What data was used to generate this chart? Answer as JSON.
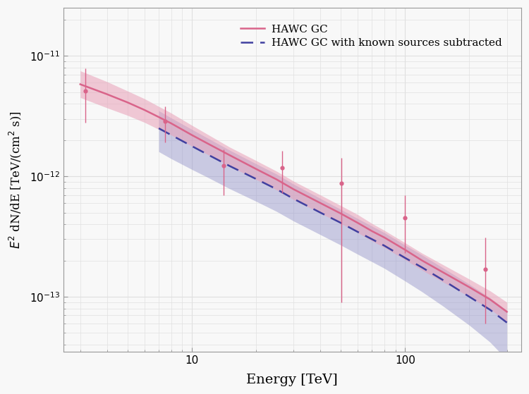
{
  "title": "",
  "xlabel": "Energy [TeV]",
  "ylabel": "$E^2$ dN/dE [TeV/(cm$^2$ s)]",
  "xlim": [
    2.5,
    350.0
  ],
  "ylim": [
    3.5e-14,
    2.5e-11
  ],
  "background_color": "#f8f8f8",
  "grid_color": "#e0e0e0",
  "hawc_gc_color": "#d9648a",
  "hawc_gc_band_color": "#e8a0b8",
  "hawc_gc_band_alpha": 0.55,
  "hawc_sub_color": "#4040a0",
  "hawc_sub_band_color": "#9090c8",
  "hawc_sub_band_alpha": 0.45,
  "legend_label_gc": "HAWC GC",
  "legend_label_sub": "HAWC GC with known sources subtracted",
  "energy_curve": [
    3.0,
    4.0,
    5.0,
    6.0,
    7.0,
    8.0,
    10.0,
    12.0,
    15.0,
    20.0,
    25.0,
    30.0,
    40.0,
    50.0,
    60.0,
    70.0,
    80.0,
    100.0,
    120.0,
    150.0,
    200.0,
    250.0,
    300.0
  ],
  "hawc_gc_flux": [
    5.8e-12,
    4.8e-12,
    4.1e-12,
    3.55e-12,
    3.1e-12,
    2.75e-12,
    2.2e-12,
    1.85e-12,
    1.5e-12,
    1.15e-12,
    9.4e-13,
    7.8e-13,
    6e-13,
    4.9e-13,
    4.1e-13,
    3.5e-13,
    3.1e-13,
    2.45e-13,
    2e-13,
    1.6e-13,
    1.2e-13,
    9.5e-14,
    7.5e-14
  ],
  "hawc_gc_upper": [
    7.5e-12,
    6.1e-12,
    5.1e-12,
    4.4e-12,
    3.8e-12,
    3.35e-12,
    2.65e-12,
    2.2e-12,
    1.75e-12,
    1.35e-12,
    1.1e-12,
    9.1e-13,
    7e-13,
    5.7e-13,
    4.8e-13,
    4.05e-13,
    3.55e-13,
    2.8e-13,
    2.3e-13,
    1.85e-13,
    1.4e-13,
    1.12e-13,
    9e-14
  ],
  "hawc_gc_lower": [
    4.5e-12,
    3.7e-12,
    3.2e-12,
    2.8e-12,
    2.45e-12,
    2.2e-12,
    1.78e-12,
    1.5e-12,
    1.22e-12,
    9.4e-13,
    7.7e-13,
    6.4e-13,
    4.95e-13,
    4.05e-13,
    3.4e-13,
    2.9e-13,
    2.56e-13,
    2.03e-13,
    1.66e-13,
    1.33e-13,
    1e-13,
    7.9e-14,
    6.2e-14
  ],
  "hawc_sub_energy": [
    7.0,
    8.0,
    10.0,
    12.0,
    15.0,
    20.0,
    25.0,
    30.0,
    40.0,
    50.0,
    60.0,
    70.0,
    80.0,
    100.0,
    120.0,
    150.0,
    200.0,
    250.0,
    300.0
  ],
  "hawc_sub_flux": [
    2.5e-12,
    2.2e-12,
    1.78e-12,
    1.5e-12,
    1.22e-12,
    9.5e-13,
    7.8e-13,
    6.5e-13,
    5e-13,
    4.1e-13,
    3.45e-13,
    3e-13,
    2.65e-13,
    2.1e-13,
    1.75e-13,
    1.38e-13,
    1e-13,
    7.8e-14,
    6.1e-14
  ],
  "hawc_sub_upper": [
    3.5e-12,
    3.05e-12,
    2.45e-12,
    2.05e-12,
    1.65e-12,
    1.27e-12,
    1.04e-12,
    8.6e-13,
    6.55e-13,
    5.3e-13,
    4.45e-13,
    3.85e-13,
    3.4e-13,
    2.68e-13,
    2.22e-13,
    1.74e-13,
    1.27e-13,
    9.8e-14,
    7.7e-14
  ],
  "hawc_sub_lower": [
    1.6e-12,
    1.4e-12,
    1.14e-12,
    9.7e-13,
    7.9e-13,
    6.2e-13,
    5.1e-13,
    4.25e-13,
    3.28e-13,
    2.68e-13,
    2.25e-13,
    1.95e-13,
    1.72e-13,
    1.35e-13,
    1.1e-13,
    8.4e-14,
    5.8e-14,
    4.2e-14,
    3e-14
  ],
  "data_energy": [
    3.16,
    7.5,
    14.1,
    26.6,
    50.1,
    100.0,
    237.0
  ],
  "data_flux": [
    5.1e-12,
    2.85e-12,
    1.22e-12,
    1.18e-12,
    8.7e-13,
    4.5e-13,
    1.7e-13
  ],
  "data_err_lo": [
    2.3e-12,
    9.5e-13,
    5.2e-13,
    4.6e-13,
    7.8e-13,
    2.2e-13,
    1.1e-13
  ],
  "data_err_hi": [
    2.8e-12,
    9.5e-13,
    4.5e-13,
    4.5e-13,
    5.5e-13,
    2.5e-13,
    1.4e-13
  ],
  "marker_color": "#d9648a",
  "marker_size": 4.5,
  "marker_style": "o",
  "capsize": 2,
  "elinewidth": 1.0,
  "figsize": [
    7.5,
    5.59
  ],
  "dpi": 100
}
